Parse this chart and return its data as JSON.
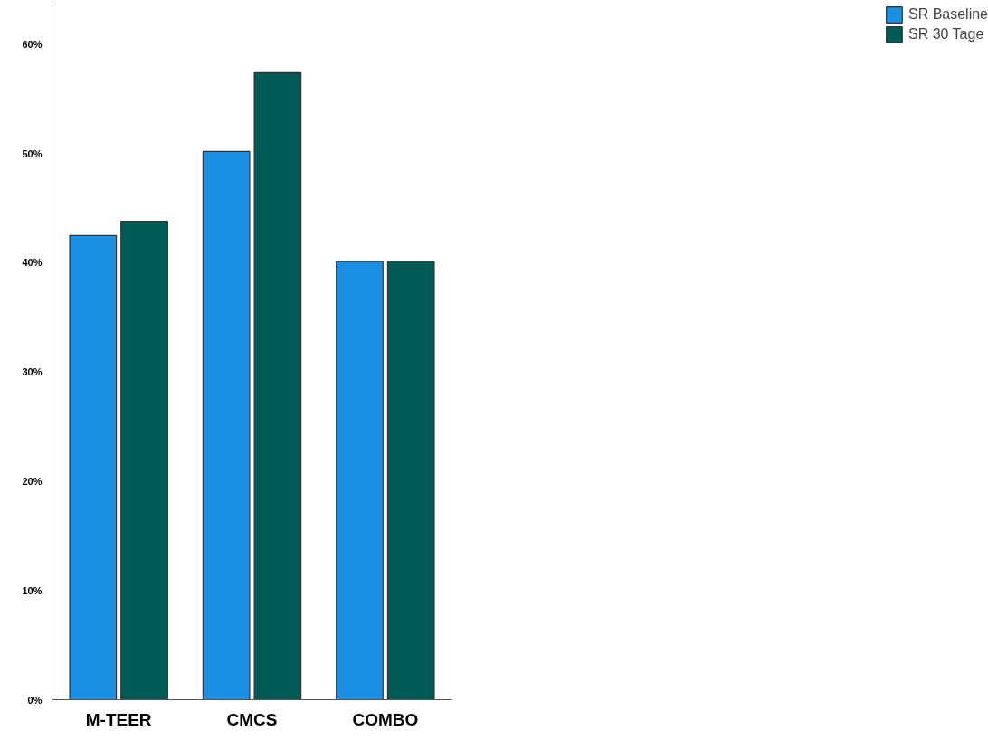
{
  "chart_data": {
    "type": "bar",
    "categories": [
      "M-TEER",
      "CMCS",
      "COMBO"
    ],
    "series": [
      {
        "name": "SR Baseline",
        "color": "#1a8fe3",
        "values": [
          42.5,
          50.2,
          40.1
        ]
      },
      {
        "name": "SR 30 Tage",
        "color": "#005a55",
        "values": [
          43.8,
          57.4,
          40.1
        ]
      }
    ],
    "ylim": [
      0,
      63.6
    ],
    "yticks": [
      {
        "value": 0,
        "label": "0%"
      },
      {
        "value": 10,
        "label": "10%"
      },
      {
        "value": 20,
        "label": "20%"
      },
      {
        "value": 30,
        "label": "30%"
      },
      {
        "value": 40,
        "label": "40%"
      },
      {
        "value": 50,
        "label": "50%"
      },
      {
        "value": 60,
        "label": "60%"
      }
    ],
    "grid": false,
    "legend": "top right"
  }
}
